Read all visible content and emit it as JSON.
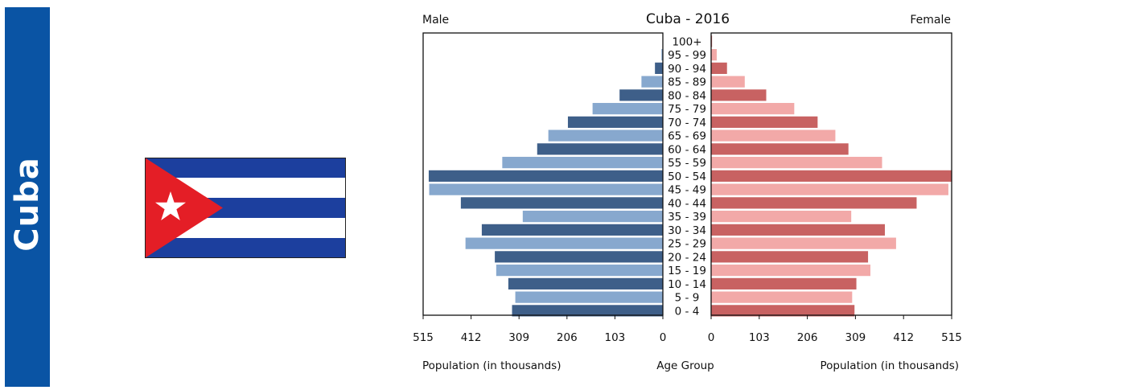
{
  "banner": {
    "country": "Cuba"
  },
  "flag": {
    "name": "Cuban flag",
    "colors": {
      "blue": "#1c3f9e",
      "white": "#ffffff",
      "red": "#e41e26",
      "star": "#ffffff"
    }
  },
  "chart_data": {
    "type": "bar",
    "subtype": "population pyramid",
    "title": "Cuba - 2016",
    "left_label": "Male",
    "right_label": "Female",
    "xlabel_left": "Population (in thousands)",
    "xlabel_center": "Age Group",
    "xlabel_right": "Population (in thousands)",
    "xlim": [
      0,
      515
    ],
    "xticks": [
      "515",
      "412",
      "309",
      "206",
      "103",
      "0"
    ],
    "xticks_right": [
      "0",
      "103",
      "206",
      "309",
      "412",
      "515"
    ],
    "categories": [
      "0 - 4",
      "5 - 9",
      "10 - 14",
      "15 - 19",
      "20 - 24",
      "25 - 29",
      "30 - 34",
      "35 - 39",
      "40 - 44",
      "45 - 49",
      "50 - 54",
      "55 - 59",
      "60 - 64",
      "65 - 69",
      "70 - 74",
      "75 - 79",
      "80 - 84",
      "85 - 89",
      "90 - 94",
      "95 - 99",
      "100+"
    ],
    "series": [
      {
        "name": "Male",
        "values": [
          324,
          317,
          332,
          358,
          361,
          424,
          389,
          301,
          434,
          502,
          503,
          345,
          270,
          246,
          204,
          151,
          93,
          46,
          17,
          3,
          0.5
        ]
      },
      {
        "name": "Female",
        "values": [
          307,
          302,
          311,
          341,
          336,
          396,
          372,
          300,
          440,
          508,
          516,
          366,
          294,
          266,
          228,
          178,
          118,
          72,
          34,
          12,
          2
        ]
      }
    ],
    "colors": {
      "male_dark": "#3e5f89",
      "male_light": "#87a8ce",
      "female_dark": "#c86262",
      "female_light": "#f2a9a8"
    },
    "grid": false
  }
}
